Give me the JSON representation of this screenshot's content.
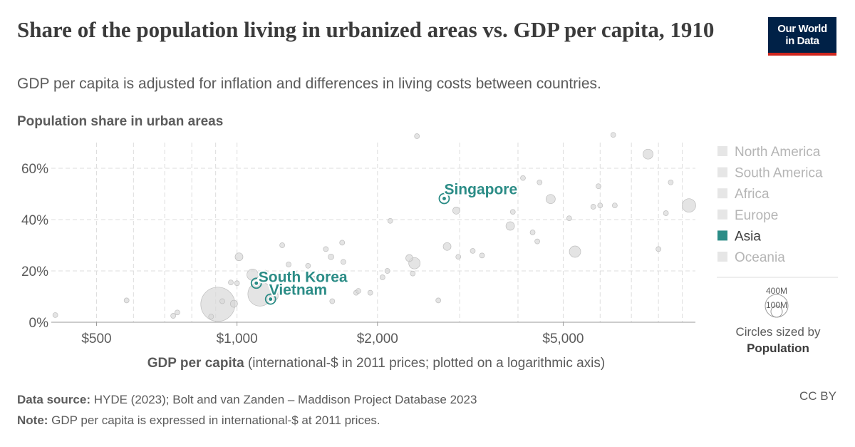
{
  "header": {
    "title": "Share of the population living in urbanized areas vs. GDP per capita, 1910",
    "subtitle": "GDP per capita is adjusted for inflation and differences in living costs between countries.",
    "logo_line1": "Our World",
    "logo_line2": "in Data"
  },
  "chart_data": {
    "type": "scatter",
    "title": "Share of the population living in urbanized areas vs. GDP per capita, 1910",
    "subtitle": "GDP per capita is adjusted for inflation and differences in living costs between countries.",
    "ylabel": "Population share in urban areas",
    "xlabel_bold": "GDP per capita",
    "xlabel_rest": " (international-$ in 2011 prices; plotted on a logarithmic axis)",
    "x_scale": "log",
    "xlim": [
      400,
      9600
    ],
    "ylim": [
      0,
      70
    ],
    "x_ticks": [
      500,
      1000,
      2000,
      5000
    ],
    "x_tick_labels": [
      "$500",
      "$1,000",
      "$2,000",
      "$5,000"
    ],
    "y_ticks": [
      0,
      20,
      40,
      60
    ],
    "y_tick_labels": [
      "0%",
      "20%",
      "40%",
      "60%"
    ],
    "grid": true,
    "legend": {
      "position": "right",
      "entries": [
        {
          "name": "North America",
          "color": "#e6e6e6",
          "active": false
        },
        {
          "name": "South America",
          "color": "#e6e6e6",
          "active": false
        },
        {
          "name": "Africa",
          "color": "#e6e6e6",
          "active": false
        },
        {
          "name": "Europe",
          "color": "#e6e6e6",
          "active": false
        },
        {
          "name": "Asia",
          "color": "#2b8c86",
          "active": true
        },
        {
          "name": "Oceania",
          "color": "#e6e6e6",
          "active": false
        }
      ]
    },
    "size_legend": {
      "large_label": "400M",
      "small_label": "100M",
      "caption_line1": "Circles sized by",
      "caption_line2": "Population"
    },
    "highlighted": [
      {
        "name": "Singapore",
        "x": 2780,
        "y": 48.2,
        "color": "#2b8c86"
      },
      {
        "name": "South Korea",
        "x": 1100,
        "y": 15.2,
        "color": "#2b8c86"
      },
      {
        "name": "Vietnam",
        "x": 1180,
        "y": 9.0,
        "color": "#2b8c86"
      }
    ],
    "points": [
      {
        "x": 408,
        "y": 2.8,
        "r": 3.5
      },
      {
        "x": 580,
        "y": 8.5,
        "r": 3.5
      },
      {
        "x": 730,
        "y": 2.5,
        "r": 3.5
      },
      {
        "x": 745,
        "y": 3.8,
        "r": 3.5
      },
      {
        "x": 880,
        "y": 2.2,
        "r": 3.5
      },
      {
        "x": 910,
        "y": 7.0,
        "r": 24
      },
      {
        "x": 930,
        "y": 8.2,
        "r": 3.5
      },
      {
        "x": 970,
        "y": 15.5,
        "r": 3.5
      },
      {
        "x": 985,
        "y": 7.2,
        "r": 5
      },
      {
        "x": 1000,
        "y": 15.2,
        "r": 3.5
      },
      {
        "x": 1010,
        "y": 25.5,
        "r": 5.5
      },
      {
        "x": 1080,
        "y": 18.5,
        "r": 8
      },
      {
        "x": 1120,
        "y": 11.0,
        "r": 17
      },
      {
        "x": 1150,
        "y": 19.0,
        "r": 4.5
      },
      {
        "x": 1200,
        "y": 10.2,
        "r": 6
      },
      {
        "x": 1230,
        "y": 12.5,
        "r": 6
      },
      {
        "x": 1250,
        "y": 30.0,
        "r": 3.5
      },
      {
        "x": 1290,
        "y": 22.5,
        "r": 3.5
      },
      {
        "x": 1330,
        "y": 19.0,
        "r": 3.5
      },
      {
        "x": 1420,
        "y": 22.0,
        "r": 3.5
      },
      {
        "x": 1460,
        "y": 17.0,
        "r": 3.5
      },
      {
        "x": 1550,
        "y": 28.5,
        "r": 3.5
      },
      {
        "x": 1590,
        "y": 25.5,
        "r": 4
      },
      {
        "x": 1600,
        "y": 8.2,
        "r": 3.5
      },
      {
        "x": 1640,
        "y": 16.5,
        "r": 3.5
      },
      {
        "x": 1680,
        "y": 31.0,
        "r": 3.5
      },
      {
        "x": 1690,
        "y": 23.5,
        "r": 3.5
      },
      {
        "x": 1800,
        "y": 11.5,
        "r": 3.5
      },
      {
        "x": 1820,
        "y": 12.2,
        "r": 3.5
      },
      {
        "x": 1930,
        "y": 11.5,
        "r": 3.5
      },
      {
        "x": 2050,
        "y": 17.5,
        "r": 3.5
      },
      {
        "x": 2100,
        "y": 20.0,
        "r": 3.5
      },
      {
        "x": 2130,
        "y": 39.5,
        "r": 3.5
      },
      {
        "x": 2340,
        "y": 25.0,
        "r": 5
      },
      {
        "x": 2380,
        "y": 19.0,
        "r": 3.5
      },
      {
        "x": 2400,
        "y": 23.0,
        "r": 8
      },
      {
        "x": 2430,
        "y": 72.5,
        "r": 3.5
      },
      {
        "x": 2700,
        "y": 8.5,
        "r": 3.5
      },
      {
        "x": 2820,
        "y": 29.5,
        "r": 5.5
      },
      {
        "x": 2950,
        "y": 43.5,
        "r": 5
      },
      {
        "x": 2980,
        "y": 25.5,
        "r": 3.5
      },
      {
        "x": 3200,
        "y": 27.8,
        "r": 3.5
      },
      {
        "x": 3350,
        "y": 26.0,
        "r": 3.5
      },
      {
        "x": 3850,
        "y": 37.5,
        "r": 6
      },
      {
        "x": 3900,
        "y": 43.0,
        "r": 3.5
      },
      {
        "x": 4100,
        "y": 56.2,
        "r": 3.5
      },
      {
        "x": 4300,
        "y": 35.0,
        "r": 3.5
      },
      {
        "x": 4400,
        "y": 31.5,
        "r": 3.5
      },
      {
        "x": 4450,
        "y": 54.5,
        "r": 3.5
      },
      {
        "x": 4700,
        "y": 48.0,
        "r": 6.5
      },
      {
        "x": 5150,
        "y": 40.5,
        "r": 3.5
      },
      {
        "x": 5300,
        "y": 27.5,
        "r": 8
      },
      {
        "x": 5800,
        "y": 45.0,
        "r": 3.5
      },
      {
        "x": 5950,
        "y": 53.0,
        "r": 3.5
      },
      {
        "x": 6000,
        "y": 45.5,
        "r": 3.5
      },
      {
        "x": 6400,
        "y": 73.0,
        "r": 3.5
      },
      {
        "x": 6450,
        "y": 45.5,
        "r": 3.5
      },
      {
        "x": 7600,
        "y": 65.5,
        "r": 7
      },
      {
        "x": 8000,
        "y": 28.5,
        "r": 3.5
      },
      {
        "x": 8300,
        "y": 42.5,
        "r": 3.5
      },
      {
        "x": 8500,
        "y": 54.5,
        "r": 3.5
      },
      {
        "x": 9300,
        "y": 45.5,
        "r": 9.5
      }
    ]
  },
  "footer": {
    "source_label": "Data source:",
    "source_text": " HYDE (2023); Bolt and van Zanden – Maddison Project Database 2023",
    "note_label": "Note:",
    "note_text": " GDP per capita is expressed in international-$ at 2011 prices.",
    "license": "CC BY"
  }
}
